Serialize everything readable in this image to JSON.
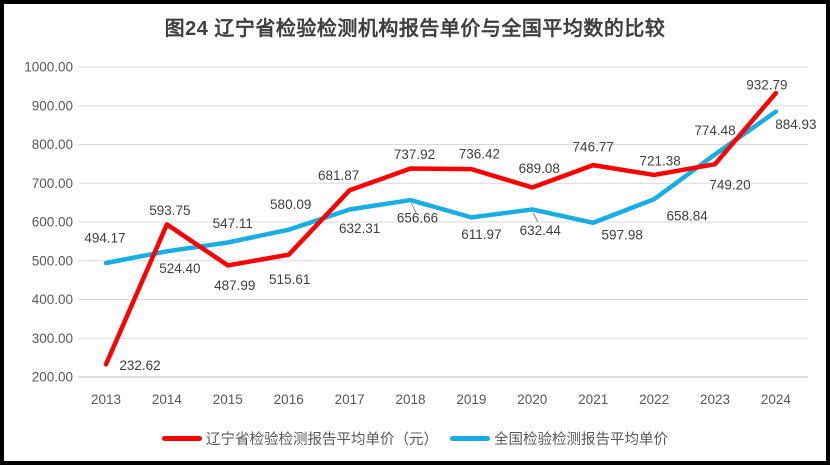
{
  "chart_data": {
    "type": "line",
    "title": "图24 辽宁省检验检测机构报告单价与全国平均数的比较",
    "categories": [
      "2013",
      "2014",
      "2015",
      "2016",
      "2017",
      "2018",
      "2019",
      "2020",
      "2021",
      "2022",
      "2023",
      "2024"
    ],
    "series": [
      {
        "name": "辽宁省检验检测报告平均单价（元）",
        "color": "#FE0000",
        "values": [
          232.62,
          593.75,
          487.99,
          515.61,
          681.87,
          737.92,
          736.42,
          689.08,
          746.77,
          721.38,
          749.2,
          932.79
        ],
        "label_dx": [
          34,
          3,
          7,
          1,
          -11,
          4,
          8,
          7,
          0,
          6,
          15,
          -9
        ],
        "label_dy": [
          1,
          -14,
          20,
          25,
          -15,
          -14,
          -15,
          -19,
          -18,
          -14,
          21,
          -8
        ],
        "leader_point_indices": []
      },
      {
        "name": "全国检验检测报告平均单价",
        "color": "#19ADE6",
        "values": [
          494.17,
          524.4,
          547.11,
          580.09,
          632.31,
          656.66,
          611.97,
          632.44,
          597.98,
          658.84,
          774.48,
          884.93
        ],
        "label_dx": [
          -1,
          13,
          5,
          2,
          10,
          7,
          10,
          8,
          29,
          33,
          0,
          20
        ],
        "label_dy": [
          -25,
          17,
          -19,
          -25,
          19,
          18,
          17,
          21,
          12,
          17,
          -24,
          13
        ],
        "leader_point_indices": [
          5,
          7
        ]
      }
    ],
    "ylim": [
      200,
      1000
    ],
    "ytick_labels": [
      "1000.00",
      "900.00",
      "800.00",
      "700.00",
      "600.00",
      "500.00",
      "400.00",
      "300.00",
      "200.00"
    ],
    "grid": true,
    "legend_position": "bottom",
    "colors": {
      "gridline": "#D9D9D9",
      "axis_line": "#BFBFBF",
      "tick_text": "#595959",
      "data_label_text": "#404040",
      "leader": "#7F7F7F",
      "title_text": "#404040",
      "legend_text": "#595959",
      "frame_border": "#000000",
      "background": "#FFFFFF"
    }
  }
}
